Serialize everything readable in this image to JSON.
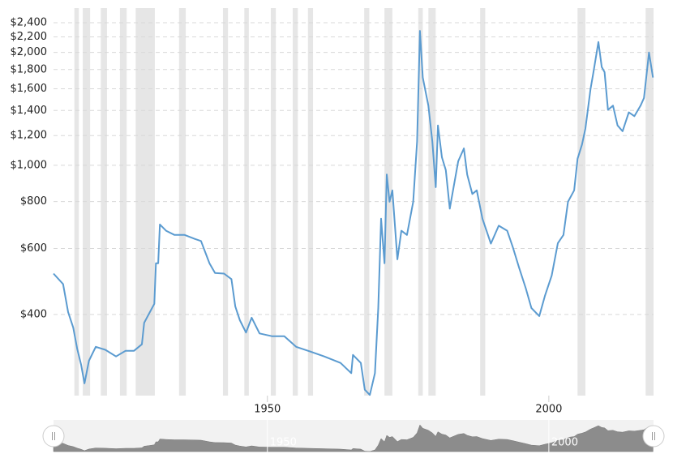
{
  "chart_data": {
    "type": "line",
    "log": true,
    "grid": true,
    "xlim": [
      1912,
      2018.6
    ],
    "ylim": [
      243,
      2625
    ],
    "xticks": [
      1950,
      2000
    ],
    "yticks": [
      {
        "value": 400,
        "label": "$400"
      },
      {
        "value": 600,
        "label": "$600"
      },
      {
        "value": 800,
        "label": "$800"
      },
      {
        "value": 1000,
        "label": "$1,000"
      },
      {
        "value": 1200,
        "label": "$1,200"
      },
      {
        "value": 1400,
        "label": "$1,400"
      },
      {
        "value": 1600,
        "label": "$1,600"
      },
      {
        "value": 1800,
        "label": "$1,800"
      },
      {
        "value": 2000,
        "label": "$2,000"
      },
      {
        "value": 2200,
        "label": "$2,200"
      },
      {
        "value": 2400,
        "label": "$2,400"
      }
    ],
    "recession_color": "#e6e6e6",
    "recessions": [
      [
        1915.7,
        1916.5
      ],
      [
        1917.2,
        1918.5
      ],
      [
        1920.4,
        1921.5
      ],
      [
        1923.8,
        1925.0
      ],
      [
        1926.6,
        1930.0
      ],
      [
        1934.3,
        1935.5
      ],
      [
        1942.1,
        1943.0
      ],
      [
        1945.9,
        1946.7
      ],
      [
        1950.6,
        1951.5
      ],
      [
        1954.5,
        1955.4
      ],
      [
        1957.2,
        1958.1
      ],
      [
        1967.2,
        1968.1
      ],
      [
        1970.8,
        1972.2
      ],
      [
        1976.8,
        1977.6
      ],
      [
        1978.6,
        1979.9
      ],
      [
        1987.8,
        1988.7
      ],
      [
        2005.1,
        2006.5
      ],
      [
        2017.2,
        2018.6
      ]
    ],
    "x": [
      1912.0,
      1913.7,
      1914.6,
      1915.5,
      1916.2,
      1916.9,
      1917.5,
      1918.3,
      1919.5,
      1921.2,
      1923.1,
      1924.8,
      1926.3,
      1927.7,
      1928.1,
      1928.9,
      1929.9,
      1930.2,
      1930.6,
      1930.9,
      1932.0,
      1933.5,
      1935.3,
      1937.1,
      1938.2,
      1939.7,
      1940.7,
      1942.3,
      1943.6,
      1944.3,
      1945.1,
      1946.2,
      1947.2,
      1948.6,
      1950.8,
      1953.0,
      1955.1,
      1957.2,
      1960.1,
      1963.0,
      1964.9,
      1965.2,
      1966.6,
      1967.3,
      1968.2,
      1969.1,
      1969.7,
      1970.2,
      1970.8,
      1971.2,
      1971.7,
      1972.2,
      1973.1,
      1973.8,
      1974.8,
      1975.9,
      1976.6,
      1977.1,
      1977.6,
      1978.6,
      1979.3,
      1979.9,
      1980.3,
      1981.0,
      1981.7,
      1982.4,
      1983.9,
      1984.9,
      1985.5,
      1986.4,
      1987.2,
      1988.2,
      1989.7,
      1991.1,
      1992.6,
      1993.6,
      1994.7,
      1995.9,
      1996.9,
      1998.3,
      1999.3,
      2000.5,
      2001.6,
      2002.6,
      2003.4,
      2004.5,
      2005.1,
      2005.9,
      2006.5,
      2007.4,
      2007.9,
      2008.8,
      2009.4,
      2009.9,
      2010.5,
      2011.4,
      2012.2,
      2013.1,
      2014.2,
      2015.2,
      2016.3,
      2016.9,
      2017.8,
      2018.5
    ],
    "series": [
      {
        "color": "#5b9bd0",
        "values": [
          514,
          482,
          406,
          369,
          324,
          294,
          262,
          301,
          328,
          322,
          309,
          320,
          320,
          333,
          380,
          400,
          427,
          548,
          548,
          695,
          669,
          652,
          652,
          636,
          628,
          548,
          516,
          514,
          497,
          420,
          386,
          358,
          392,
          356,
          350,
          350,
          328,
          320,
          309,
          297,
          279,
          312,
          297,
          252,
          244,
          279,
          416,
          720,
          548,
          945,
          799,
          857,
          561,
          669,
          652,
          799,
          1157,
          2282,
          1714,
          1442,
          1157,
          874,
          1277,
          1050,
          971,
          766,
          1025,
          1109,
          944,
          838,
          857,
          720,
          618,
          690,
          669,
          604,
          534,
          470,
          416,
          396,
          448,
          508,
          620,
          652,
          799,
          857,
          1041,
          1136,
          1254,
          1597,
          1761,
          2132,
          1829,
          1771,
          1405,
          1442,
          1277,
          1232,
          1384,
          1352,
          1442,
          1511,
          1998,
          1714
        ]
      }
    ]
  }
}
